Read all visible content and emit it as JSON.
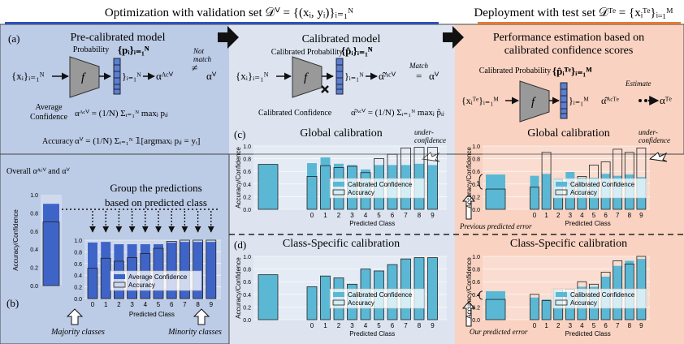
{
  "header": {
    "left_title": "Optimization with validation set  𝒟ⱽ = {(xᵢ, yᵢ)}ᵢ₌₁ᴺ",
    "right_title": "Deployment with test set  𝒟ᵀᵉ = {xᵢᵀᵉ}ᵢ₌₁ᴹ"
  },
  "panel_a": {
    "label": "(a)",
    "pre_title": "Pre-calibrated model",
    "probability_label": "Probability",
    "p_set": "{pᵢ}ᵢ₌₁ᴺ",
    "input_set": "{xᵢ}ᵢ₌₁ᴺ",
    "model_letter": "f",
    "out_set": "}ᵢ₌₁ᴺ",
    "alpha_ac": "αᴬᶜⱽ",
    "not_match": "Not\nmatch",
    "neq": "≠",
    "alpha_v": "αⱽ",
    "avg_conf_label": "Average\nConfidence",
    "avg_conf_formula": "αᴬᶜⱽ = (1/N) Σᵢ₌₁ᴺ maxⱼ pᵢⱼ",
    "accuracy_label": "Accuracy",
    "accuracy_formula": "αⱽ = (1/N) Σᵢ₌₁ᴺ 𝟙[argmaxⱼ pᵢⱼ = yᵢ]",
    "cal_title": "Calibrated model",
    "cal_prob_label": "Calibrated Probability",
    "p_hat_set": "{p̂ᵢ}ᵢ₌₁ᴺ",
    "alpha_hat": "α̂ᴬᶜⱽ",
    "match": "Match",
    "eq": "=",
    "cal_conf_label": "Calibrated Confidence",
    "cal_conf_formula": "α̂ᴬᶜⱽ = (1/N) Σᵢ₌₁ᴺ maxⱼ p̂ᵢⱼ",
    "perf_title": "Performance estimation based on\ncalibrated confidence scores",
    "test_prob_label": "Calibrated Probability",
    "test_p_set": "{p̂ᵢᵀᵉ}ᵢ₌₁ᴹ",
    "test_input": "{xᵢᵀᵉ}ᵢ₌₁ᴹ",
    "test_out": "}ᵢ₌₁ᴹ",
    "test_alpha_hat": "α̂ᴬᶜᵀᵉ",
    "estimate": "Estimate",
    "alpha_te": "αᵀᵉ"
  },
  "panel_b": {
    "label": "(b)",
    "overall_label": "Overall αᴬᶜⱽ and αⱽ",
    "group_text": "Group the predictions\nbased on predicted class",
    "majority": "Majority classes",
    "minority": "Minority classes"
  },
  "panel_c": {
    "label": "(c)",
    "title": "Global calibration",
    "under_conf": "under-\nconfidence",
    "previous_error": "Previous predicted error"
  },
  "panel_d": {
    "label": "(d)",
    "title": "Class-Specific calibration",
    "our_error": "Our predicted error"
  },
  "axes": {
    "ylabel": "Accuracy/Confidence",
    "xlabel": "Predicted Class",
    "yticks": [
      "0.0",
      "0.2",
      "0.4",
      "0.6",
      "0.8",
      "1.0"
    ],
    "class_ticks": [
      "0",
      "1",
      "2",
      "3",
      "4",
      "5",
      "6",
      "7",
      "8",
      "9"
    ]
  },
  "legend": {
    "average_confidence": "Average Confidence",
    "calibrated_confidence": "Calibrated Confidence",
    "accuracy": "Accuracy"
  },
  "colors": {
    "blue_panel": "#bccbe6",
    "light_panel": "#dde4f0",
    "peach_panel": "#f9d2c1",
    "dark_blue_bar": "#3f64c8",
    "teal_bar": "#5ab8d5",
    "accent_orange": "#e07a3a"
  },
  "chart_data": [
    {
      "type": "bar",
      "name": "overall-validation",
      "values_confidence": [
        0.9
      ],
      "values_accuracy": [
        0.7
      ],
      "ylim": [
        0,
        1
      ]
    },
    {
      "type": "bar",
      "name": "pre-calibration-per-class",
      "categories": [
        "0",
        "1",
        "2",
        "3",
        "4",
        "5",
        "6",
        "7",
        "8",
        "9"
      ],
      "series": [
        {
          "name": "Average Confidence",
          "values": [
            0.96,
            0.97,
            0.93,
            0.93,
            0.93,
            0.93,
            0.96,
            0.97,
            0.97,
            0.97
          ]
        },
        {
          "name": "Accuracy",
          "values": [
            0.52,
            0.69,
            0.64,
            0.7,
            0.77,
            0.86,
            0.98,
            1.0,
            1.0,
            1.0
          ]
        }
      ],
      "ylim": [
        0,
        1
      ]
    },
    {
      "type": "bar",
      "name": "global-validation",
      "overall": {
        "confidence": 0.71,
        "accuracy": 0.71
      },
      "categories": [
        "0",
        "1",
        "2",
        "3",
        "4",
        "5",
        "6",
        "7",
        "8",
        "9"
      ],
      "series": [
        {
          "name": "Calibrated Confidence",
          "values": [
            0.73,
            0.82,
            0.72,
            0.7,
            0.63,
            0.7,
            0.7,
            0.7,
            0.72,
            0.7
          ]
        },
        {
          "name": "Accuracy",
          "values": [
            0.52,
            0.69,
            0.66,
            0.68,
            0.58,
            0.8,
            0.87,
            0.97,
            0.98,
            0.98
          ]
        }
      ],
      "ylim": [
        0,
        1
      ]
    },
    {
      "type": "bar",
      "name": "global-test",
      "overall": {
        "confidence": 0.55,
        "accuracy": 0.32
      },
      "categories": [
        "0",
        "1",
        "2",
        "3",
        "4",
        "5",
        "6",
        "7",
        "8",
        "9"
      ],
      "series": [
        {
          "name": "Calibrated Confidence",
          "values": [
            0.53,
            0.56,
            0.49,
            0.59,
            0.5,
            0.5,
            0.56,
            0.53,
            0.55,
            0.51
          ]
        },
        {
          "name": "Accuracy",
          "values": [
            0.35,
            0.9,
            0.47,
            0.4,
            0.52,
            0.7,
            0.75,
            0.95,
            0.9,
            0.97
          ]
        }
      ],
      "ylim": [
        0,
        1
      ]
    },
    {
      "type": "bar",
      "name": "class-specific-validation",
      "overall": {
        "confidence": 0.71,
        "accuracy": 0.71
      },
      "categories": [
        "0",
        "1",
        "2",
        "3",
        "4",
        "5",
        "6",
        "7",
        "8",
        "9"
      ],
      "series": [
        {
          "name": "Calibrated Confidence",
          "values": [
            0.52,
            0.69,
            0.66,
            0.56,
            0.8,
            0.77,
            0.87,
            0.96,
            0.98,
            0.98
          ]
        },
        {
          "name": "Accuracy",
          "values": [
            0.52,
            0.69,
            0.66,
            0.56,
            0.8,
            0.77,
            0.87,
            0.96,
            0.98,
            0.98
          ]
        }
      ],
      "ylim": [
        0,
        1
      ]
    },
    {
      "type": "bar",
      "name": "class-specific-test",
      "overall": {
        "confidence": 0.45,
        "accuracy": 0.32
      },
      "categories": [
        "0",
        "1",
        "2",
        "3",
        "4",
        "5",
        "6",
        "7",
        "8",
        "9"
      ],
      "series": [
        {
          "name": "Calibrated Confidence",
          "values": [
            0.35,
            0.32,
            0.45,
            0.44,
            0.52,
            0.52,
            0.68,
            0.85,
            0.93,
            0.96
          ]
        },
        {
          "name": "Accuracy",
          "values": [
            0.4,
            0.3,
            0.47,
            0.48,
            0.6,
            0.56,
            0.75,
            0.93,
            0.88,
            1.0
          ]
        }
      ],
      "ylim": [
        0,
        1
      ]
    }
  ]
}
